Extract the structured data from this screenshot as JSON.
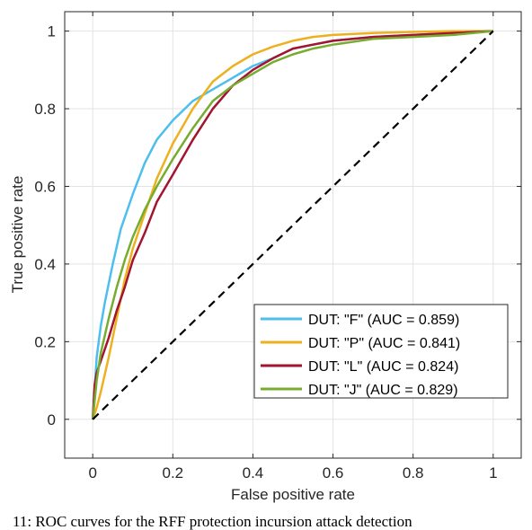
{
  "chart_data": {
    "type": "line",
    "xlabel": "False positive rate",
    "ylabel": "True positive rate",
    "xlim": [
      -0.07,
      1.07
    ],
    "ylim": [
      -0.1,
      1.05
    ],
    "xticks": [
      0,
      0.2,
      0.4,
      0.6,
      0.8,
      1
    ],
    "yticks": [
      0,
      0.2,
      0.4,
      0.6,
      0.8,
      1
    ],
    "xtick_labels": [
      "0",
      "0.2",
      "0.4",
      "0.6",
      "0.8",
      "1"
    ],
    "ytick_labels": [
      "0",
      "0.2",
      "0.4",
      "0.6",
      "0.8",
      "1"
    ],
    "grid": true,
    "legend_position": "bottom-right",
    "reference_line": {
      "x": [
        0,
        1
      ],
      "y": [
        0,
        1
      ],
      "style": "dashed",
      "color": "#000000"
    },
    "series": [
      {
        "name": "DUT: \"F\" (AUC = 0.859)",
        "color": "#4DBEEE",
        "x": [
          0,
          0.005,
          0.01,
          0.02,
          0.03,
          0.05,
          0.07,
          0.1,
          0.13,
          0.16,
          0.2,
          0.25,
          0.3,
          0.35,
          0.4,
          0.45,
          0.5,
          0.55,
          0.6,
          0.7,
          0.8,
          0.9,
          1.0
        ],
        "y": [
          0,
          0.08,
          0.16,
          0.24,
          0.3,
          0.4,
          0.49,
          0.58,
          0.66,
          0.72,
          0.77,
          0.82,
          0.85,
          0.88,
          0.91,
          0.93,
          0.955,
          0.965,
          0.975,
          0.985,
          0.99,
          0.995,
          1.0
        ]
      },
      {
        "name": "DUT: \"P\" (AUC = 0.841)",
        "color": "#EDB120",
        "x": [
          0,
          0.01,
          0.02,
          0.04,
          0.06,
          0.08,
          0.1,
          0.13,
          0.16,
          0.2,
          0.25,
          0.3,
          0.35,
          0.4,
          0.45,
          0.5,
          0.55,
          0.6,
          0.7,
          0.8,
          0.9,
          1.0
        ],
        "y": [
          0,
          0.03,
          0.07,
          0.16,
          0.26,
          0.36,
          0.44,
          0.53,
          0.62,
          0.71,
          0.8,
          0.87,
          0.91,
          0.94,
          0.96,
          0.975,
          0.985,
          0.99,
          0.995,
          0.998,
          1.0,
          1.0
        ]
      },
      {
        "name": "DUT: \"L\" (AUC = 0.824)",
        "color": "#A2142F",
        "x": [
          0,
          0.005,
          0.01,
          0.02,
          0.04,
          0.06,
          0.08,
          0.1,
          0.13,
          0.16,
          0.2,
          0.25,
          0.3,
          0.35,
          0.4,
          0.45,
          0.5,
          0.55,
          0.6,
          0.7,
          0.8,
          0.9,
          1.0
        ],
        "y": [
          0,
          0.09,
          0.12,
          0.15,
          0.21,
          0.28,
          0.34,
          0.41,
          0.48,
          0.56,
          0.63,
          0.72,
          0.8,
          0.86,
          0.9,
          0.93,
          0.955,
          0.965,
          0.975,
          0.985,
          0.99,
          0.995,
          1.0
        ]
      },
      {
        "name": "DUT: \"J\" (AUC = 0.829)",
        "color": "#77AC30",
        "x": [
          0,
          0.005,
          0.01,
          0.02,
          0.04,
          0.06,
          0.08,
          0.1,
          0.13,
          0.16,
          0.2,
          0.25,
          0.3,
          0.35,
          0.4,
          0.45,
          0.5,
          0.55,
          0.6,
          0.7,
          0.8,
          0.9,
          1.0
        ],
        "y": [
          0,
          0.05,
          0.1,
          0.17,
          0.26,
          0.34,
          0.41,
          0.47,
          0.54,
          0.6,
          0.67,
          0.75,
          0.82,
          0.86,
          0.89,
          0.92,
          0.94,
          0.955,
          0.965,
          0.98,
          0.985,
          0.99,
          1.0
        ]
      }
    ]
  },
  "caption": "11: ROC curves for the RFF protection incursion attack detection"
}
